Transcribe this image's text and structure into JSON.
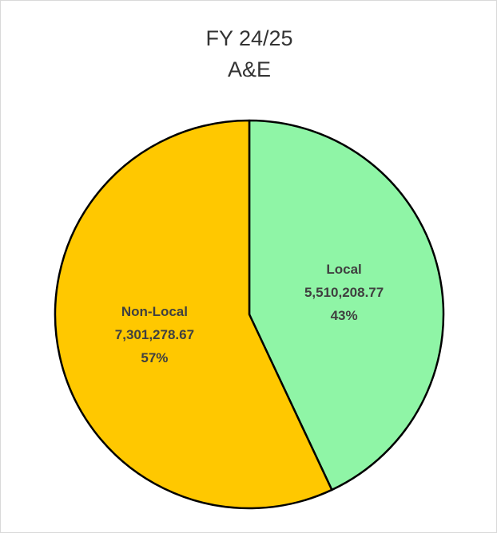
{
  "chart_data": {
    "type": "pie",
    "title": "FY 24/25",
    "subtitle": "A&E",
    "categories": [
      "Local",
      "Non-Local"
    ],
    "values": [
      5510208.77,
      7301278.67
    ],
    "value_labels": [
      "5,510,208.77",
      "7,301,278.67"
    ],
    "percents": [
      43,
      57
    ],
    "percent_labels": [
      "43%",
      "57%"
    ],
    "colors": [
      "#8ff5a6",
      "#ffc800"
    ]
  }
}
